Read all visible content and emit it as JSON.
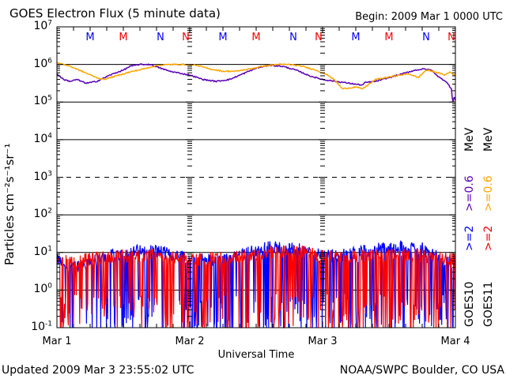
{
  "chart_data": {
    "type": "line",
    "title": "GOES Electron Flux (5 minute data)",
    "begin_label": "Begin: 2009 Mar 1 0000 UTC",
    "xlabel": "Universal Time",
    "ylabel": "Particles cm⁻²s⁻¹sr⁻¹",
    "x_ticks": [
      "Mar 1",
      "Mar 2",
      "Mar 3",
      "Mar 4"
    ],
    "xlim_days": [
      0,
      3
    ],
    "yscale": "log",
    "ylim": [
      0.1,
      10000000
    ],
    "y_ticks": [
      {
        "base": "10",
        "exp": "7",
        "value": 10000000
      },
      {
        "base": "10",
        "exp": "6",
        "value": 1000000
      },
      {
        "base": "10",
        "exp": "5",
        "value": 100000
      },
      {
        "base": "10",
        "exp": "4",
        "value": 10000
      },
      {
        "base": "10",
        "exp": "3",
        "value": 1000
      },
      {
        "base": "10",
        "exp": "2",
        "value": 100
      },
      {
        "base": "10",
        "exp": "1",
        "value": 10
      },
      {
        "base": "10",
        "exp": "0",
        "value": 1
      },
      {
        "base": "10",
        "exp": "-1",
        "value": 0.1
      }
    ],
    "grid_lines": [
      {
        "value": 1000000,
        "style": "solid"
      },
      {
        "value": 100000,
        "style": "solid"
      },
      {
        "value": 10000,
        "style": "solid"
      },
      {
        "value": 1000,
        "style": "dashed"
      },
      {
        "value": 100,
        "style": "solid"
      },
      {
        "value": 10,
        "style": "solid"
      },
      {
        "value": 1,
        "style": "solid"
      }
    ],
    "markers": [
      {
        "label": "M",
        "day": 0.25,
        "color": "#0000ff"
      },
      {
        "label": "M",
        "day": 0.5,
        "color": "#ff0000"
      },
      {
        "label": "N",
        "day": 0.78,
        "color": "#0000ff"
      },
      {
        "label": "N",
        "day": 0.97,
        "color": "#ff0000"
      },
      {
        "label": "M",
        "day": 1.25,
        "color": "#0000ff"
      },
      {
        "label": "M",
        "day": 1.5,
        "color": "#ff0000"
      },
      {
        "label": "N",
        "day": 1.78,
        "color": "#0000ff"
      },
      {
        "label": "N",
        "day": 1.97,
        "color": "#ff0000"
      },
      {
        "label": "M",
        "day": 2.25,
        "color": "#0000ff"
      },
      {
        "label": "M",
        "day": 2.5,
        "color": "#ff0000"
      },
      {
        "label": "N",
        "day": 2.78,
        "color": "#0000ff"
      },
      {
        "label": "N",
        "day": 2.97,
        "color": "#ff0000"
      }
    ],
    "series": [
      {
        "name": "GOES10 >=0.6 MeV",
        "color": "#5a00b4",
        "style": "smooth",
        "points_day_log10flux": [
          [
            0.0,
            5.75
          ],
          [
            0.05,
            5.6
          ],
          [
            0.1,
            5.55
          ],
          [
            0.15,
            5.6
          ],
          [
            0.22,
            5.5
          ],
          [
            0.3,
            5.55
          ],
          [
            0.4,
            5.72
          ],
          [
            0.5,
            5.85
          ],
          [
            0.55,
            5.95
          ],
          [
            0.62,
            6.0
          ],
          [
            0.7,
            6.0
          ],
          [
            0.78,
            5.9
          ],
          [
            0.85,
            5.82
          ],
          [
            0.95,
            5.75
          ],
          [
            1.0,
            5.72
          ],
          [
            1.1,
            5.6
          ],
          [
            1.2,
            5.55
          ],
          [
            1.3,
            5.6
          ],
          [
            1.4,
            5.75
          ],
          [
            1.5,
            5.9
          ],
          [
            1.6,
            5.98
          ],
          [
            1.7,
            5.95
          ],
          [
            1.8,
            5.85
          ],
          [
            1.9,
            5.7
          ],
          [
            2.0,
            5.6
          ],
          [
            2.1,
            5.55
          ],
          [
            2.2,
            5.5
          ],
          [
            2.3,
            5.45
          ],
          [
            2.32,
            5.52
          ],
          [
            2.4,
            5.55
          ],
          [
            2.5,
            5.65
          ],
          [
            2.6,
            5.75
          ],
          [
            2.7,
            5.85
          ],
          [
            2.76,
            5.88
          ],
          [
            2.82,
            5.85
          ],
          [
            2.88,
            5.65
          ],
          [
            2.93,
            5.55
          ],
          [
            2.97,
            5.35
          ],
          [
            2.98,
            4.95
          ],
          [
            2.99,
            5.15
          ],
          [
            3.0,
            5.05
          ]
        ]
      },
      {
        "name": "GOES11 >=0.6 MeV",
        "color": "#ffa500",
        "style": "smooth",
        "points_day_log10flux": [
          [
            0.0,
            6.05
          ],
          [
            0.1,
            5.95
          ],
          [
            0.2,
            5.8
          ],
          [
            0.3,
            5.65
          ],
          [
            0.35,
            5.6
          ],
          [
            0.45,
            5.7
          ],
          [
            0.55,
            5.8
          ],
          [
            0.65,
            5.88
          ],
          [
            0.75,
            5.97
          ],
          [
            0.85,
            6.0
          ],
          [
            0.95,
            6.0
          ],
          [
            1.05,
            5.98
          ],
          [
            1.15,
            5.88
          ],
          [
            1.25,
            5.82
          ],
          [
            1.35,
            5.82
          ],
          [
            1.45,
            5.88
          ],
          [
            1.55,
            5.95
          ],
          [
            1.65,
            6.0
          ],
          [
            1.75,
            6.0
          ],
          [
            1.85,
            5.95
          ],
          [
            1.95,
            5.85
          ],
          [
            2.05,
            5.7
          ],
          [
            2.1,
            5.55
          ],
          [
            2.15,
            5.35
          ],
          [
            2.25,
            5.4
          ],
          [
            2.3,
            5.35
          ],
          [
            2.4,
            5.6
          ],
          [
            2.55,
            5.7
          ],
          [
            2.65,
            5.75
          ],
          [
            2.72,
            5.65
          ],
          [
            2.78,
            5.85
          ],
          [
            2.85,
            5.8
          ],
          [
            2.92,
            5.72
          ],
          [
            2.96,
            5.8
          ],
          [
            3.0,
            5.7
          ]
        ]
      },
      {
        "name": "GOES10 >=2 MeV",
        "color": "#0000ff",
        "style": "noisy",
        "points_day_log10flux": [
          [
            0.0,
            0.8
          ],
          [
            0.1,
            0.6
          ],
          [
            0.2,
            0.7
          ],
          [
            0.3,
            0.8
          ],
          [
            0.45,
            0.95
          ],
          [
            0.6,
            1.05
          ],
          [
            0.75,
            1.05
          ],
          [
            0.9,
            0.9
          ],
          [
            1.0,
            0.85
          ],
          [
            1.2,
            0.8
          ],
          [
            1.4,
            0.95
          ],
          [
            1.6,
            1.15
          ],
          [
            1.8,
            1.1
          ],
          [
            2.0,
            0.9
          ],
          [
            2.2,
            0.95
          ],
          [
            2.4,
            1.1
          ],
          [
            2.6,
            1.15
          ],
          [
            2.75,
            1.1
          ],
          [
            2.9,
            0.8
          ],
          [
            3.0,
            0.7
          ]
        ]
      },
      {
        "name": "GOES11 >=2 MeV",
        "color": "#ff0000",
        "style": "noisy",
        "points_day_log10flux": [
          [
            0.0,
            0.8
          ],
          [
            0.1,
            0.75
          ],
          [
            0.2,
            0.8
          ],
          [
            0.3,
            0.85
          ],
          [
            0.5,
            0.9
          ],
          [
            0.7,
            0.95
          ],
          [
            0.9,
            0.85
          ],
          [
            1.0,
            0.8
          ],
          [
            1.2,
            0.85
          ],
          [
            1.4,
            0.9
          ],
          [
            1.6,
            1.0
          ],
          [
            1.8,
            1.05
          ],
          [
            2.0,
            0.9
          ],
          [
            2.2,
            0.9
          ],
          [
            2.4,
            0.9
          ],
          [
            2.6,
            0.95
          ],
          [
            2.8,
            0.9
          ],
          [
            3.0,
            0.8
          ]
        ]
      }
    ],
    "legend": {
      "placement": "right",
      "columns": [
        {
          "satellite": "GOES10",
          "low_label": ">=2",
          "low_color": "#0000ff",
          "high_label": ">=0.6",
          "high_color": "#5a00b4",
          "unit": "MeV"
        },
        {
          "satellite": "GOES11",
          "low_label": ">=2",
          "low_color": "#ff0000",
          "high_label": ">=0.6",
          "high_color": "#ffa500",
          "unit": "MeV"
        }
      ]
    }
  },
  "footer": {
    "updated": "Updated 2009 Mar  3 23:55:02 UTC",
    "credit": "NOAA/SWPC Boulder, CO USA"
  }
}
